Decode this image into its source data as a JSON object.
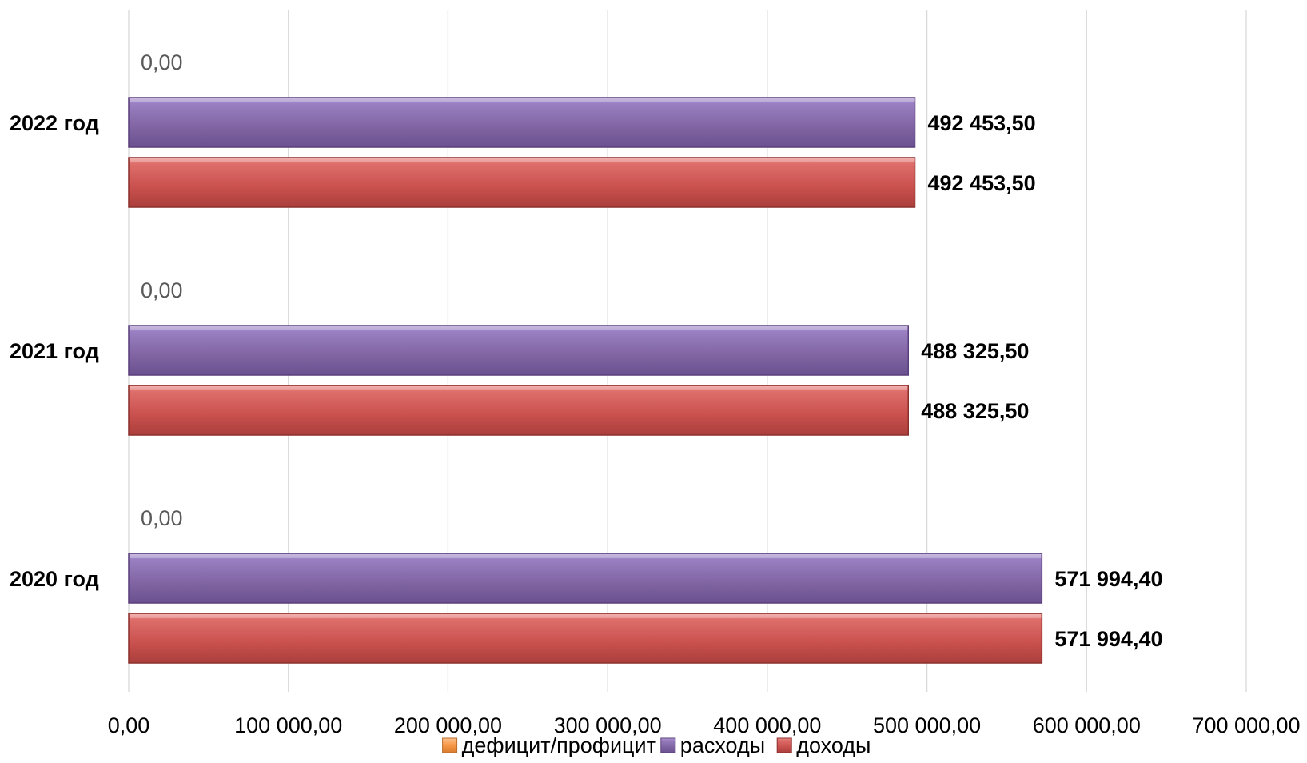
{
  "chart_data": {
    "type": "bar",
    "orientation": "horizontal",
    "categories": [
      "2020 год",
      "2021 год",
      "2022 год"
    ],
    "series": [
      {
        "name": "дефицит/профицит",
        "color": "#F79646",
        "values": [
          0.0,
          0.0,
          0.0
        ],
        "labels": [
          "0,00",
          "0,00",
          "0,00"
        ]
      },
      {
        "name": "расходы",
        "color": "#8064A2",
        "values": [
          571994.4,
          488325.5,
          492453.5
        ],
        "labels": [
          "571 994,40",
          "488 325,50",
          "492 453,50"
        ]
      },
      {
        "name": "доходы",
        "color": "#C0504D",
        "values": [
          571994.4,
          488325.5,
          492453.5
        ],
        "labels": [
          "571 994,40",
          "488 325,50",
          "492 453,50"
        ]
      }
    ],
    "xlim": [
      0,
      700000
    ],
    "xticks": [
      0,
      100000,
      200000,
      300000,
      400000,
      500000,
      600000,
      700000
    ],
    "xtick_labels": [
      "0,00",
      "100 000,00",
      "200 000,00",
      "300 000,00",
      "400 000,00",
      "500 000,00",
      "600 000,00",
      "700 000,00"
    ],
    "grid": true,
    "legend": "bottom",
    "title": "",
    "xlabel": "",
    "ylabel": ""
  }
}
